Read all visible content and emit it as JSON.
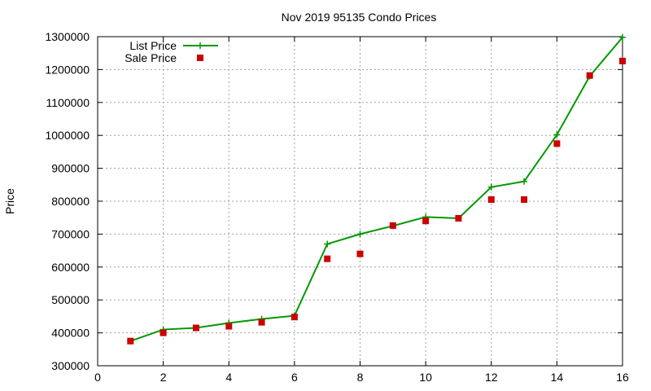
{
  "chart_data": {
    "type": "line",
    "title": "Nov 2019 95135 Condo Prices",
    "xlabel": "",
    "ylabel": "Price",
    "xlim": [
      0,
      16
    ],
    "ylim": [
      300000,
      1300000
    ],
    "x_ticks": [
      0,
      2,
      4,
      6,
      8,
      10,
      12,
      14,
      16
    ],
    "y_ticks": [
      300000,
      400000,
      500000,
      600000,
      700000,
      800000,
      900000,
      1000000,
      1100000,
      1200000,
      1300000
    ],
    "grid": true,
    "legend_position": "top-left",
    "series": [
      {
        "name": "List Price",
        "style": "line+cross",
        "color": "#009900",
        "x": [
          1,
          2,
          3,
          4,
          5,
          6,
          7,
          8,
          9,
          10,
          11,
          12,
          13,
          14,
          15,
          16
        ],
        "y": [
          375000,
          410000,
          415000,
          430000,
          442000,
          452000,
          670000,
          700000,
          725000,
          752000,
          748000,
          843000,
          860000,
          1002000,
          1180000,
          1298000
        ]
      },
      {
        "name": "Sale Price",
        "style": "square",
        "color": "#cc0000",
        "x": [
          1,
          2,
          3,
          4,
          5,
          6,
          7,
          8,
          9,
          10,
          11,
          12,
          13,
          14,
          15,
          16
        ],
        "y": [
          375000,
          400000,
          415000,
          420000,
          432000,
          448000,
          625000,
          640000,
          726000,
          740000,
          748000,
          805000,
          805000,
          975000,
          1182000,
          1226000
        ]
      }
    ]
  }
}
